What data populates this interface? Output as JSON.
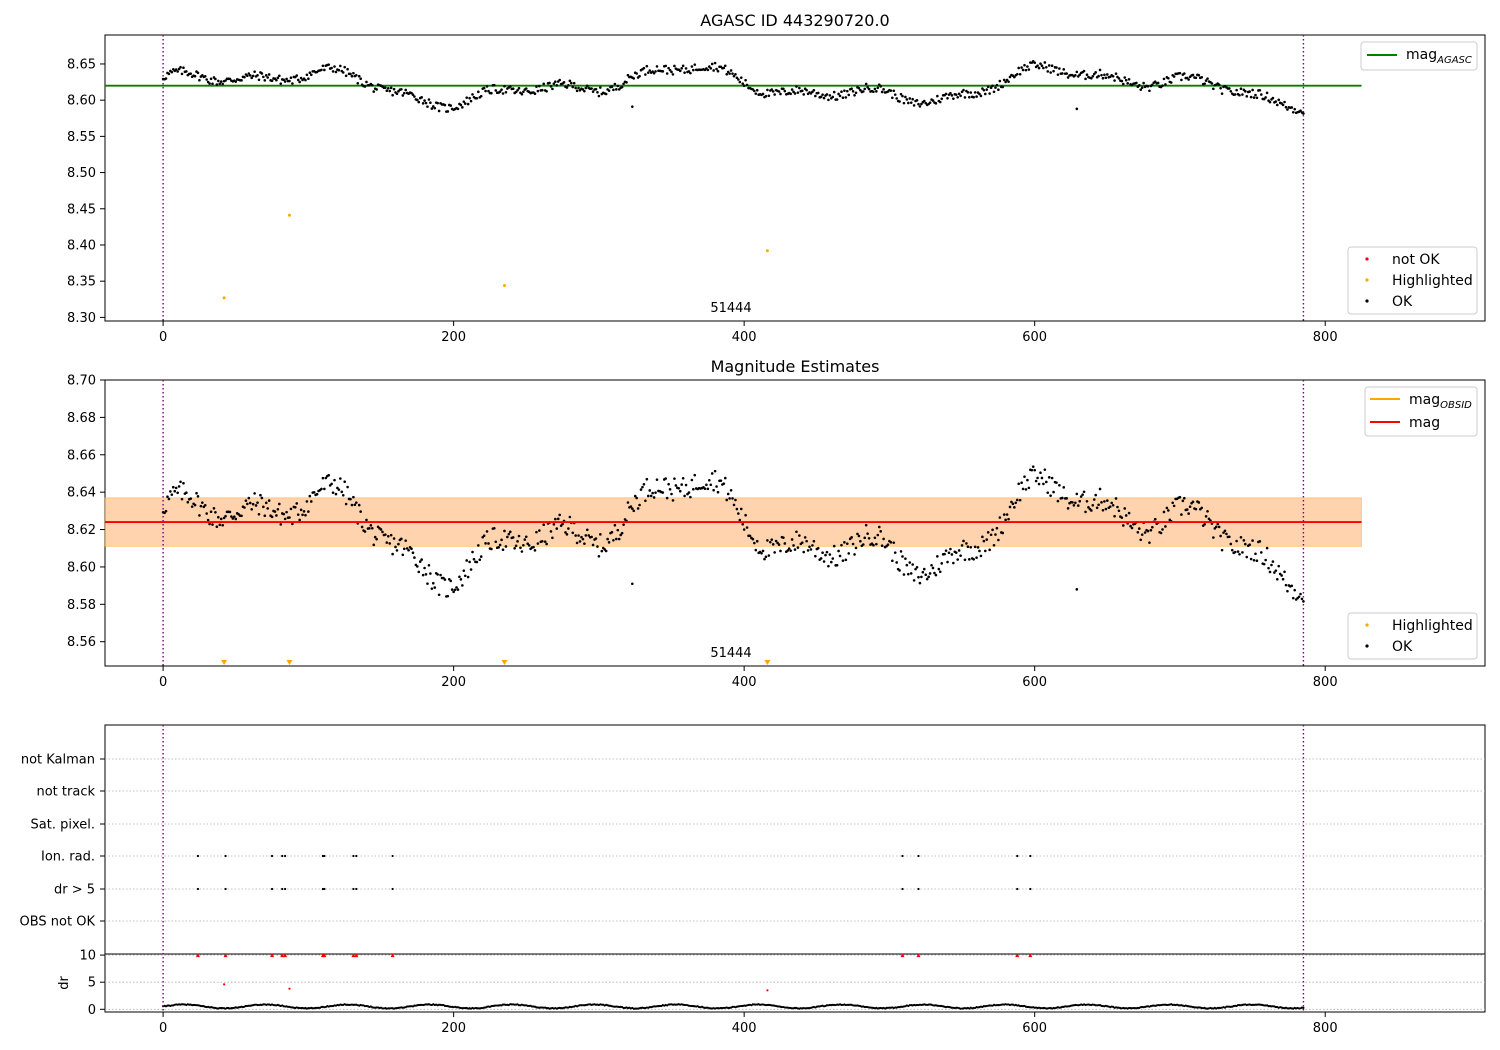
{
  "chart_data": [
    {
      "type": "scatter",
      "title": "AGASC ID 443290720.0",
      "xlim": [
        -40,
        910
      ],
      "ylim": [
        8.295,
        8.69
      ],
      "xticks": [
        "0",
        "200",
        "400",
        "600",
        "800"
      ],
      "yticks": [
        "8.30",
        "8.35",
        "8.40",
        "8.45",
        "8.50",
        "8.55",
        "8.60",
        "8.65"
      ],
      "vlines_x": [
        0,
        785
      ],
      "obsid_label": "51444",
      "obsid_label_x": 393,
      "mag_agasc": 8.62,
      "mag_agasc_xrange": [
        -40,
        825
      ],
      "base_level": 8.62,
      "n_points": 786,
      "highlighted_points": [
        [
          42,
          8.327
        ],
        [
          87,
          8.441
        ],
        [
          235,
          8.344
        ],
        [
          416,
          8.392
        ]
      ],
      "legend_lines": [
        {
          "label": "mag",
          "sub": "AGASC",
          "color": "#008000"
        }
      ],
      "legend_markers": [
        {
          "label": "not OK",
          "color": "#ff0000"
        },
        {
          "label": "Highlighted",
          "color": "#ffa500"
        },
        {
          "label": "OK",
          "color": "#000000"
        }
      ]
    },
    {
      "type": "scatter",
      "title": "Magnitude Estimates",
      "xlim": [
        -40,
        910
      ],
      "ylim": [
        8.547,
        8.7
      ],
      "xticks": [
        "0",
        "200",
        "400",
        "600",
        "800"
      ],
      "yticks": [
        "8.56",
        "8.58",
        "8.60",
        "8.62",
        "8.64",
        "8.66",
        "8.68",
        "8.70"
      ],
      "vlines_x": [
        0,
        785
      ],
      "obsid_label": "51444",
      "obsid_label_x": 393,
      "mag": 8.624,
      "mag_obsid": 8.624,
      "band_outer": [
        8.611,
        8.637
      ],
      "band_inner": [
        8.611,
        8.637
      ],
      "band_xrange": [
        -40,
        825
      ],
      "highlighted_markers_x": [
        42,
        87,
        235,
        416
      ],
      "legend_lines": [
        {
          "label": "mag",
          "sub": "OBSID",
          "color": "#ffa500"
        },
        {
          "label": "mag",
          "sub": "",
          "color": "#ff0000"
        }
      ],
      "legend_markers": [
        {
          "label": "Highlighted",
          "color": "#ffa500"
        },
        {
          "label": "OK",
          "color": "#000000"
        }
      ]
    },
    {
      "type": "scatter",
      "title": "",
      "xlim": [
        -40,
        910
      ],
      "xticks": [
        "0",
        "200",
        "400",
        "600",
        "800"
      ],
      "flag_rows": [
        "not Kalman",
        "not track",
        "Sat. pixel.",
        "Ion. rad.",
        "dr > 5",
        "OBS not OK"
      ],
      "flag_points_x": [
        24,
        43,
        75,
        82,
        84,
        110,
        111,
        131,
        133,
        158,
        509,
        520,
        588,
        597
      ],
      "flag_points_rows": [
        "Ion. rad.",
        "dr > 5"
      ],
      "dr_ylabel": "dr",
      "dr_yticks": [
        "0",
        "5",
        "10"
      ],
      "dr_ylim": [
        -0.5,
        10.2
      ],
      "dr_capped": [
        24,
        43,
        75,
        82,
        84,
        110,
        111,
        131,
        133,
        158,
        509,
        520,
        588,
        597
      ],
      "dr_outliers": [
        [
          42,
          4.6
        ],
        [
          87,
          3.8
        ],
        [
          416,
          3.5
        ]
      ],
      "n_points": 786
    }
  ]
}
